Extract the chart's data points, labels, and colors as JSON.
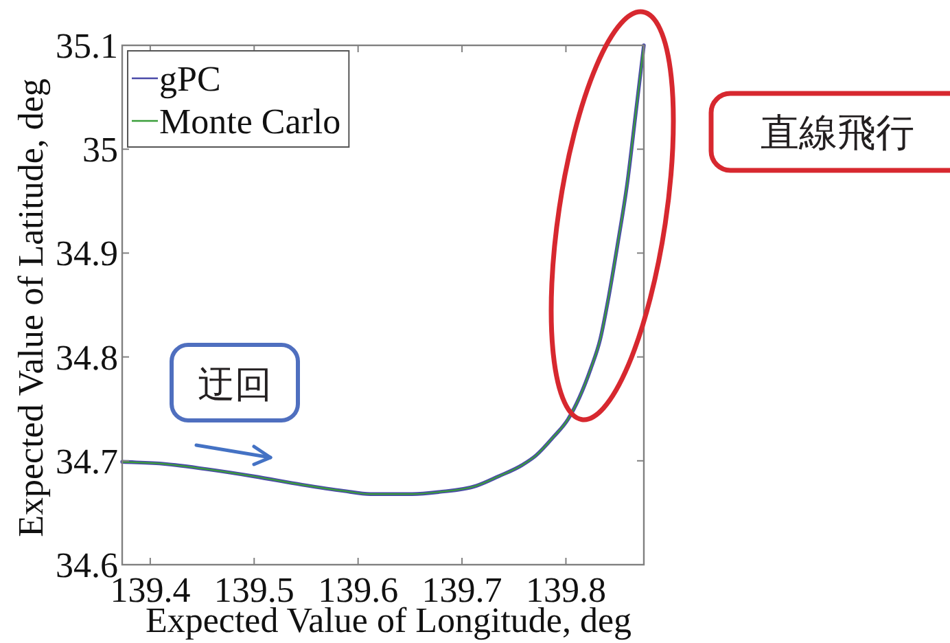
{
  "chart_data": {
    "type": "line",
    "xlabel": "Expected Value of Longitude, deg",
    "ylabel": "Expected Value of Latitude, deg",
    "xlim": [
      139.373,
      139.875
    ],
    "ylim": [
      34.6,
      35.1
    ],
    "xticks": [
      139.4,
      139.5,
      139.6,
      139.7,
      139.8
    ],
    "yticks": [
      34.6,
      34.7,
      34.8,
      34.9,
      35,
      35.1
    ],
    "legend": "top left",
    "annotations": [
      "迂回",
      "直線飛行"
    ],
    "x": [
      139.373,
      139.414,
      139.454,
      139.5,
      139.546,
      139.586,
      139.612,
      139.652,
      139.678,
      139.714,
      139.735,
      139.758,
      139.771,
      139.788,
      139.802,
      139.824,
      139.833,
      139.841,
      139.85,
      139.859,
      139.867,
      139.875
    ],
    "series": [
      {
        "name": "gPC",
        "color": "#4a4aa8",
        "values": [
          34.699,
          34.697,
          34.692,
          34.685,
          34.677,
          34.671,
          34.668,
          34.668,
          34.67,
          34.676,
          34.685,
          34.696,
          34.705,
          34.723,
          34.74,
          34.789,
          34.817,
          34.857,
          34.91,
          34.967,
          35.033,
          35.1
        ]
      },
      {
        "name": "Monte Carlo",
        "color": "#3a9e3a",
        "values": [
          34.699,
          34.697,
          34.692,
          34.685,
          34.677,
          34.671,
          34.668,
          34.668,
          34.67,
          34.676,
          34.685,
          34.696,
          34.705,
          34.723,
          34.74,
          34.789,
          34.817,
          34.857,
          34.91,
          34.967,
          35.033,
          35.1
        ]
      }
    ]
  }
}
